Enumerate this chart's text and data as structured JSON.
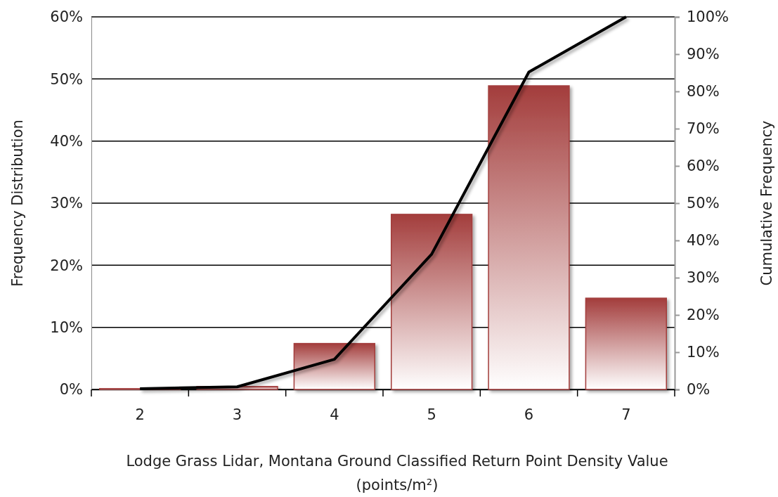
{
  "chart_data": {
    "type": "bar",
    "categories": [
      "2",
      "3",
      "4",
      "5",
      "6",
      "7"
    ],
    "series": [
      {
        "color": "#a33d3c",
        "values": [
          0.2,
          0.5,
          7.4,
          28.2,
          48.9,
          14.7
        ]
      },
      {
        "type": "line",
        "axis": "y2",
        "color": "#000000",
        "values": [
          0.2,
          0.7,
          8.1,
          36.3,
          85.2,
          100
        ]
      }
    ],
    "ylim": [
      0,
      60
    ],
    "yticks": [
      {
        "value": 0,
        "label": "0%"
      },
      {
        "value": 10,
        "label": "10%"
      },
      {
        "value": 20,
        "label": "20%"
      },
      {
        "value": 30,
        "label": "30%"
      },
      {
        "value": 40,
        "label": "40%"
      },
      {
        "value": 50,
        "label": "50%"
      },
      {
        "value": 60,
        "label": "60%"
      }
    ],
    "y2lim": [
      0,
      100
    ],
    "y2ticks": [
      {
        "value": 0,
        "label": "0%"
      },
      {
        "value": 10,
        "label": "10%"
      },
      {
        "value": 20,
        "label": "20%"
      },
      {
        "value": 30,
        "label": "30%"
      },
      {
        "value": 40,
        "label": "40%"
      },
      {
        "value": 50,
        "label": "50%"
      },
      {
        "value": 60,
        "label": "60%"
      },
      {
        "value": 70,
        "label": "70%"
      },
      {
        "value": 80,
        "label": "80%"
      },
      {
        "value": 90,
        "label": "90%"
      },
      {
        "value": 100,
        "label": "100%"
      }
    ],
    "ylabel": "Frequency Distribution",
    "y2label": "Cumulative Frequency",
    "xlabel": "Lodge Grass Lidar, Montana Ground Classified Return Point Density Value (points/m²)",
    "grid": "y",
    "marker": "none",
    "line_style": "solid"
  }
}
